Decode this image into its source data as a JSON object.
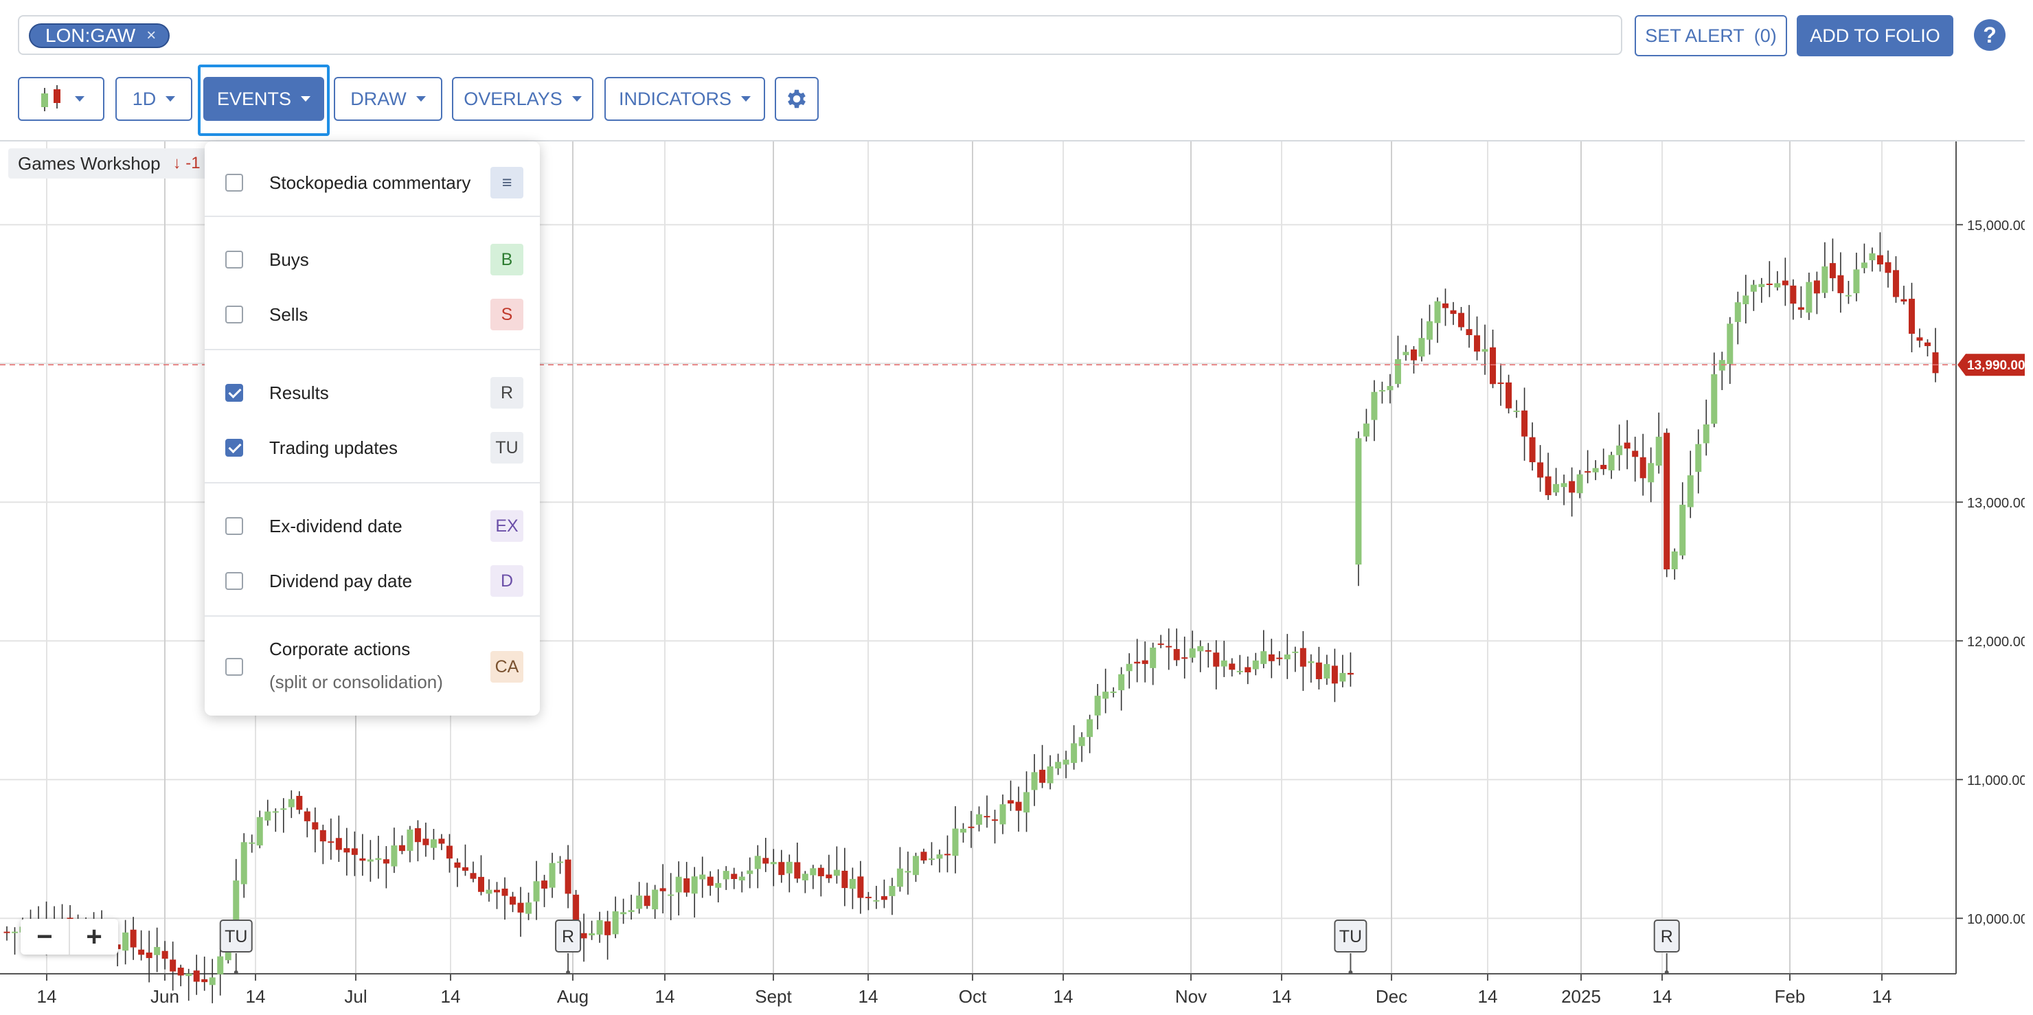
{
  "search": {
    "ticker": "LON:GAW",
    "remove_label": "×"
  },
  "header": {
    "set_alert_label": "SET ALERT",
    "alert_count": "(0)",
    "add_to_folio_label": "ADD TO FOLIO",
    "help_label": "?"
  },
  "toolbar": {
    "chart_type_icon": "candlestick-icon",
    "interval_label": "1D",
    "events_label": "EVENTS",
    "draw_label": "DRAW",
    "overlays_label": "OVERLAYS",
    "indicators_label": "INDICATORS",
    "settings_icon": "gear-icon"
  },
  "legend": {
    "name": "Games Workshop",
    "change": "↓ -1"
  },
  "events_menu": {
    "items": [
      {
        "label": "Stockopedia commentary",
        "checked": false,
        "badge": "≡",
        "badge_bg": "#dfe6f2",
        "badge_color": "#4a5b7a"
      },
      {
        "label": "Buys",
        "checked": false,
        "badge": "B",
        "badge_bg": "#d5f0d9",
        "badge_color": "#2e7d32"
      },
      {
        "label": "Sells",
        "checked": false,
        "badge": "S",
        "badge_bg": "#f7dada",
        "badge_color": "#c0392b"
      },
      {
        "label": "Results",
        "checked": true,
        "badge": "R",
        "badge_bg": "#eceef2",
        "badge_color": "#444"
      },
      {
        "label": "Trading updates",
        "checked": true,
        "badge": "TU",
        "badge_bg": "#eceef2",
        "badge_color": "#444"
      },
      {
        "label": "Ex-dividend date",
        "checked": false,
        "badge": "EX",
        "badge_bg": "#efeaf7",
        "badge_color": "#6b4fa8"
      },
      {
        "label": "Dividend pay date",
        "checked": false,
        "badge": "D",
        "badge_bg": "#efeaf7",
        "badge_color": "#6b4fa8"
      },
      {
        "label": "Corporate actions",
        "sub": "(split or consolidation)",
        "checked": false,
        "badge": "CA",
        "badge_bg": "#f8e6d6",
        "badge_color": "#7a5230"
      }
    ]
  },
  "chart_data": {
    "type": "candlestick",
    "x_labels": [
      "14",
      "Jun",
      "14",
      "Jul",
      "14",
      "Aug",
      "14",
      "Sept",
      "14",
      "Oct",
      "14",
      "Nov",
      "14",
      "Dec",
      "14",
      "2025",
      "14",
      "Feb",
      "14"
    ],
    "y_ticks": [
      "15,000.00",
      "13,000.00",
      "12,000.00",
      "11,000.00",
      "10,000.00"
    ],
    "ylim": [
      9600,
      15600
    ],
    "last_price": 13990,
    "last_price_label": "13,990.00",
    "colors": {
      "up": "#8fc77a",
      "down": "#c0291d",
      "grid": "#e3e3e3",
      "axis": "#555555"
    },
    "anchors": [
      [
        0,
        9900
      ],
      [
        8,
        10000
      ],
      [
        14,
        9850
      ],
      [
        20,
        9700
      ],
      [
        24,
        9550
      ],
      [
        27,
        9700
      ],
      [
        30,
        10550
      ],
      [
        33,
        10750
      ],
      [
        37,
        10850
      ],
      [
        40,
        10550
      ],
      [
        46,
        10400
      ],
      [
        52,
        10600
      ],
      [
        58,
        10350
      ],
      [
        64,
        10050
      ],
      [
        68,
        10250
      ],
      [
        70,
        10400
      ],
      [
        72,
        9850
      ],
      [
        76,
        9950
      ],
      [
        80,
        10150
      ],
      [
        88,
        10300
      ],
      [
        96,
        10400
      ],
      [
        104,
        10300
      ],
      [
        110,
        10150
      ],
      [
        114,
        10400
      ],
      [
        118,
        10500
      ],
      [
        122,
        10650
      ],
      [
        128,
        10800
      ],
      [
        130,
        11000
      ],
      [
        134,
        11200
      ],
      [
        138,
        11550
      ],
      [
        142,
        11800
      ],
      [
        146,
        11900
      ],
      [
        150,
        11950
      ],
      [
        156,
        11800
      ],
      [
        162,
        11900
      ],
      [
        166,
        11800
      ],
      [
        170,
        11700
      ],
      [
        171,
        13450
      ],
      [
        173,
        13750
      ],
      [
        178,
        14100
      ],
      [
        181,
        14450
      ],
      [
        185,
        14250
      ],
      [
        189,
        13800
      ],
      [
        192,
        13500
      ],
      [
        195,
        13100
      ],
      [
        200,
        13150
      ],
      [
        204,
        13350
      ],
      [
        207,
        13250
      ],
      [
        209,
        13450
      ],
      [
        210,
        12450
      ],
      [
        212,
        12950
      ],
      [
        215,
        13600
      ],
      [
        218,
        14350
      ],
      [
        221,
        14500
      ],
      [
        224,
        14600
      ],
      [
        227,
        14450
      ],
      [
        230,
        14650
      ],
      [
        233,
        14550
      ],
      [
        236,
        14750
      ],
      [
        239,
        14500
      ],
      [
        242,
        14150
      ],
      [
        244,
        13990
      ]
    ],
    "events": [
      {
        "label": "TU",
        "index": 29
      },
      {
        "label": "R",
        "index": 71
      },
      {
        "label": "TU",
        "index": 170
      },
      {
        "label": "R",
        "index": 210
      }
    ]
  }
}
